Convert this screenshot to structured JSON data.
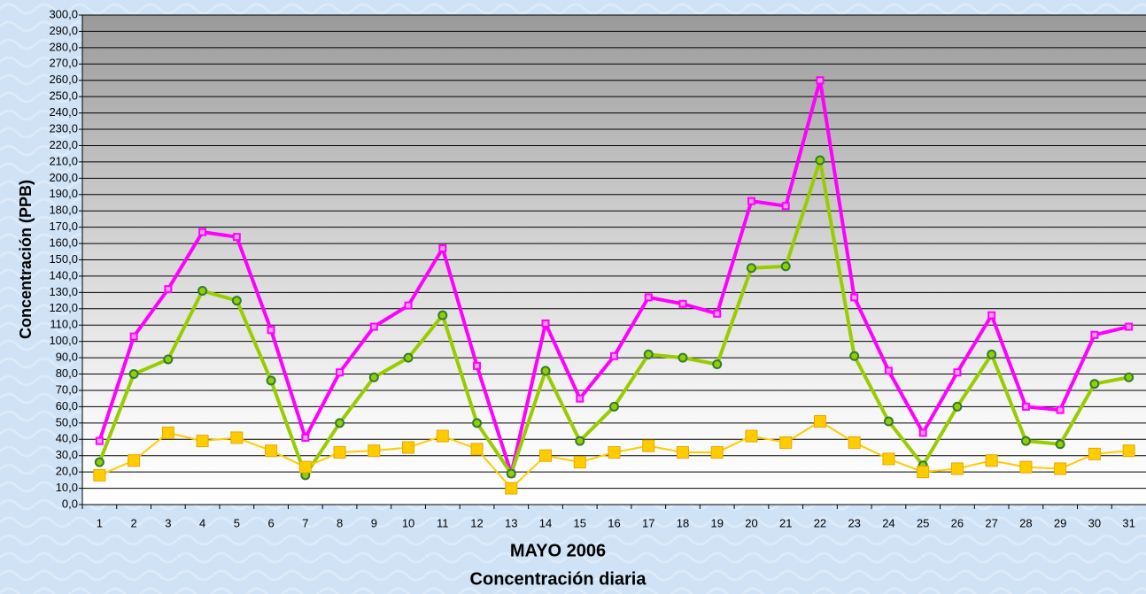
{
  "chart_data": {
    "type": "line",
    "title": "Concentración diaria",
    "xlabel": "MAYO 2006",
    "ylabel": "Concentración  (PPB)",
    "categories": [
      "1",
      "2",
      "3",
      "4",
      "5",
      "6",
      "7",
      "8",
      "9",
      "10",
      "11",
      "12",
      "13",
      "14",
      "15",
      "16",
      "17",
      "18",
      "19",
      "20",
      "21",
      "22",
      "23",
      "24",
      "25",
      "26",
      "27",
      "28",
      "29",
      "30",
      "31"
    ],
    "series": [
      {
        "color": "#ff00ff",
        "marker": "square",
        "values": [
          39,
          103,
          132,
          167,
          164,
          107,
          41,
          81,
          109,
          122,
          157,
          85,
          19,
          111,
          65,
          91,
          127,
          123,
          117,
          186,
          183,
          260,
          127,
          82,
          44,
          81,
          116,
          60,
          58,
          104,
          109
        ]
      },
      {
        "color": "#99cc00",
        "marker": "circle",
        "values": [
          26,
          80,
          89,
          131,
          125,
          76,
          18,
          50,
          78,
          90,
          116,
          50,
          19,
          82,
          39,
          60,
          92,
          90,
          86,
          145,
          146,
          211,
          91,
          51,
          24,
          60,
          92,
          39,
          37,
          74,
          78
        ]
      },
      {
        "color": "#ffcc00",
        "marker": "square",
        "values": [
          18,
          27,
          44,
          39,
          41,
          33,
          23,
          32,
          33,
          35,
          42,
          34,
          10,
          30,
          26,
          32,
          36,
          32,
          32,
          42,
          38,
          51,
          38,
          28,
          20,
          22,
          27,
          23,
          22,
          31,
          33
        ]
      }
    ],
    "ylim": [
      0,
      300
    ],
    "yticks": [
      {
        "value": 0,
        "label": "0,0"
      },
      {
        "value": 10,
        "label": "10,0"
      },
      {
        "value": 20,
        "label": "20,0"
      },
      {
        "value": 30,
        "label": "30,0"
      },
      {
        "value": 40,
        "label": "40,0"
      },
      {
        "value": 50,
        "label": "50,0"
      },
      {
        "value": 60,
        "label": "60,0"
      },
      {
        "value": 70,
        "label": "70,0"
      },
      {
        "value": 80,
        "label": "80,0"
      },
      {
        "value": 90,
        "label": "90,0"
      },
      {
        "value": 100,
        "label": "100,0"
      },
      {
        "value": 110,
        "label": "110,0"
      },
      {
        "value": 120,
        "label": "120,0"
      },
      {
        "value": 130,
        "label": "130,0"
      },
      {
        "value": 140,
        "label": "140,0"
      },
      {
        "value": 150,
        "label": "150,0"
      },
      {
        "value": 160,
        "label": "160,0"
      },
      {
        "value": 170,
        "label": "170,0"
      },
      {
        "value": 180,
        "label": "180,0"
      },
      {
        "value": 190,
        "label": "190,0"
      },
      {
        "value": 200,
        "label": "200,0"
      },
      {
        "value": 210,
        "label": "210,0"
      },
      {
        "value": 220,
        "label": "220,0"
      },
      {
        "value": 230,
        "label": "230,0"
      },
      {
        "value": 240,
        "label": "240,0"
      },
      {
        "value": 250,
        "label": "250,0"
      },
      {
        "value": 260,
        "label": "260,0"
      },
      {
        "value": 270,
        "label": "270,0"
      },
      {
        "value": 280,
        "label": "280,0"
      },
      {
        "value": 290,
        "label": "290,0"
      },
      {
        "value": 300,
        "label": "300,0"
      }
    ],
    "grid": true
  }
}
